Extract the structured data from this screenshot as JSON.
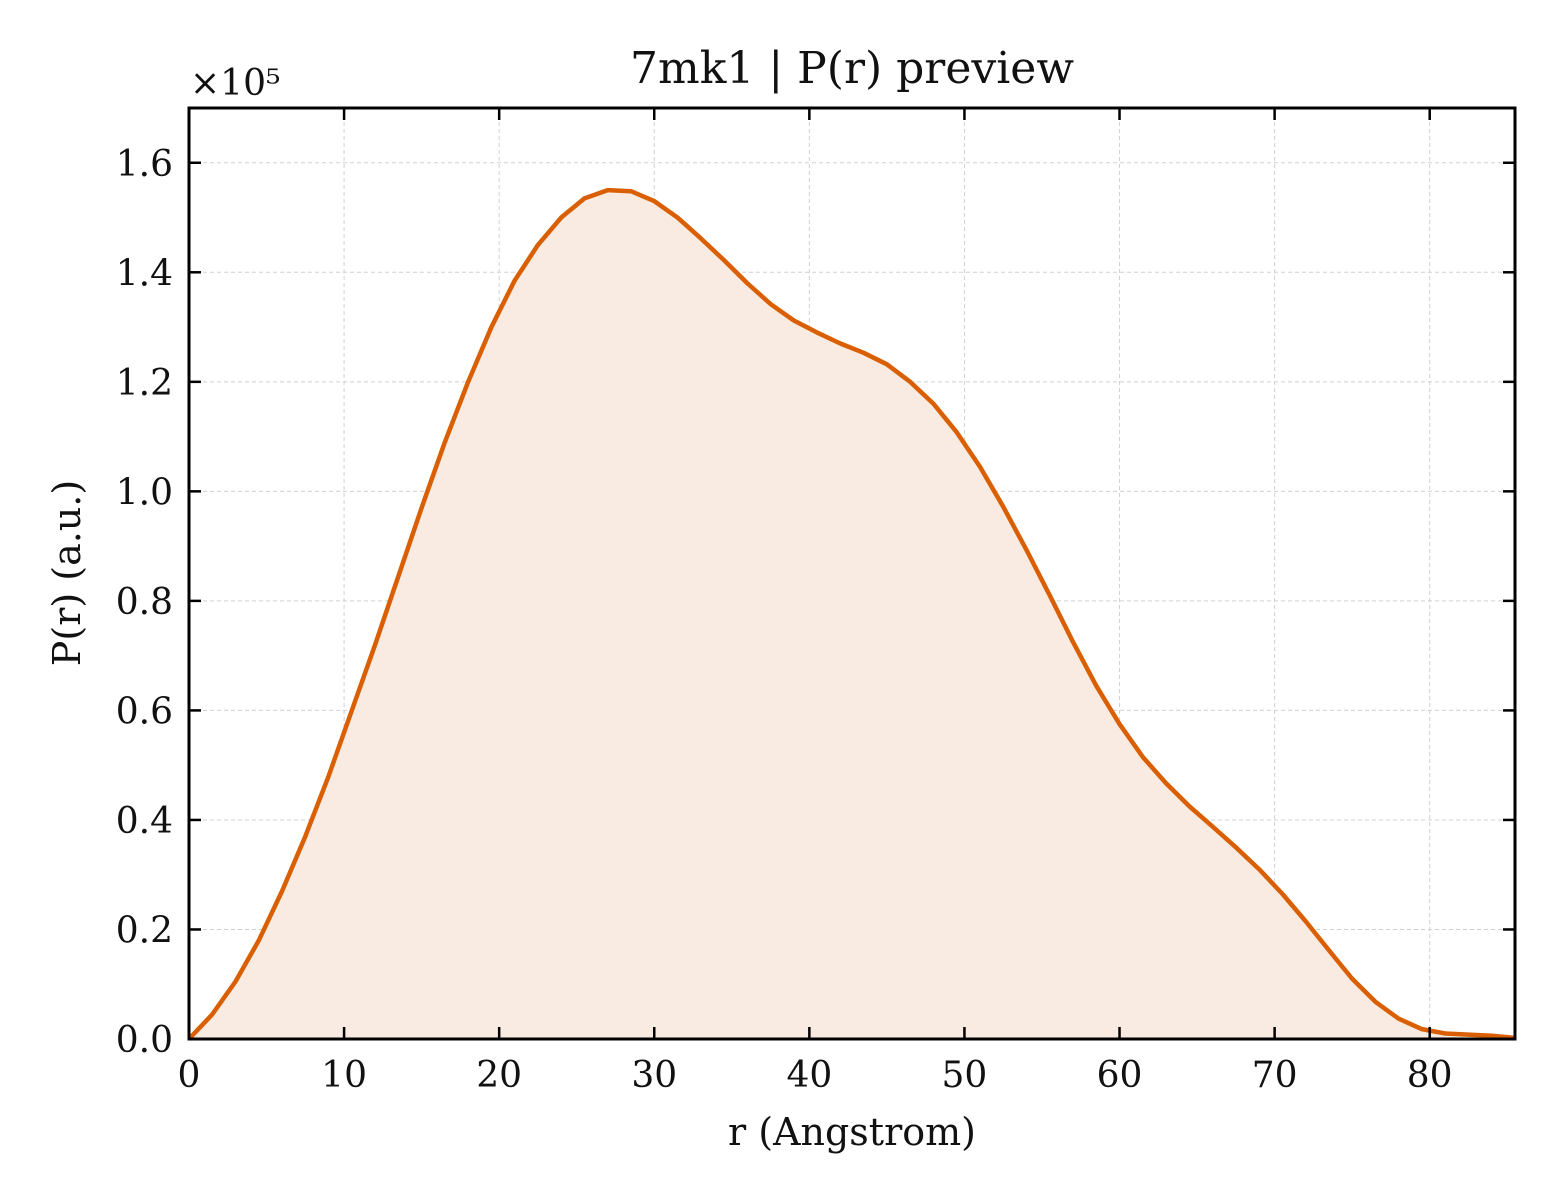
{
  "chart_data": {
    "type": "line",
    "title": "7mk1 | P(r) preview",
    "xlabel": "r (Angstrom)",
    "ylabel": "P(r) (a.u.)",
    "y_multiplier_label": "×10⁵",
    "y_scale_factor": 100000,
    "xlim": [
      0,
      85.5
    ],
    "ylim": [
      0,
      1.7
    ],
    "x_ticks": [
      0,
      10,
      20,
      30,
      40,
      50,
      60,
      70,
      80
    ],
    "y_ticks": [
      0.0,
      0.2,
      0.4,
      0.6,
      0.8,
      1.0,
      1.2,
      1.4,
      1.6
    ],
    "grid": true,
    "filled_area": true,
    "colors": {
      "line": "#d95f02",
      "fill": "#f9ebe1",
      "grid": "#d0d0d0",
      "axis": "#000000"
    },
    "series": [
      {
        "x": [
          0,
          1.5,
          3,
          4.5,
          6,
          7.5,
          9,
          10.5,
          12,
          13.5,
          15,
          16.5,
          18,
          19.5,
          21,
          22.5,
          24,
          25.5,
          27,
          28.5,
          30,
          31.5,
          33,
          34.5,
          36,
          37.5,
          39,
          40.5,
          42,
          43.5,
          45,
          46.5,
          48,
          49.5,
          51,
          52.5,
          54,
          55.5,
          57,
          58.5,
          60,
          61.5,
          63,
          64.5,
          66,
          67.5,
          69,
          70.5,
          72,
          73.5,
          75,
          76.5,
          78,
          79.5,
          81,
          82.5,
          84,
          85.5
        ],
        "y": [
          0.0,
          0.045,
          0.105,
          0.18,
          0.27,
          0.37,
          0.48,
          0.6,
          0.72,
          0.845,
          0.97,
          1.09,
          1.2,
          1.3,
          1.385,
          1.45,
          1.5,
          1.535,
          1.55,
          1.548,
          1.53,
          1.5,
          1.462,
          1.422,
          1.38,
          1.342,
          1.312,
          1.29,
          1.27,
          1.253,
          1.232,
          1.2,
          1.16,
          1.108,
          1.045,
          0.972,
          0.893,
          0.81,
          0.725,
          0.645,
          0.575,
          0.515,
          0.467,
          0.425,
          0.388,
          0.35,
          0.31,
          0.265,
          0.215,
          0.162,
          0.11,
          0.068,
          0.037,
          0.018,
          0.01,
          0.008,
          0.006,
          0.002
        ]
      }
    ]
  }
}
